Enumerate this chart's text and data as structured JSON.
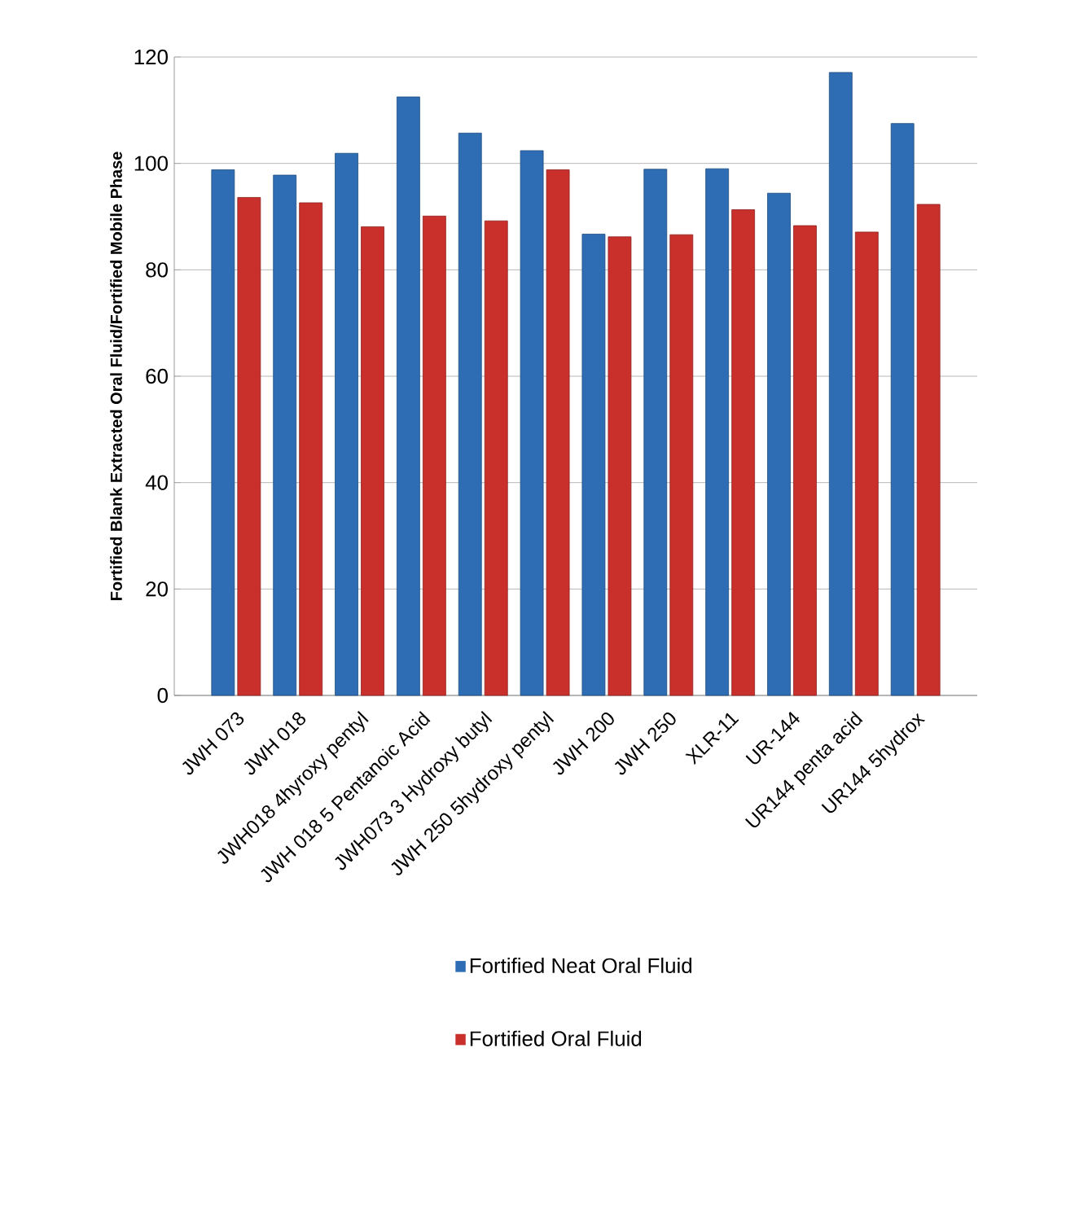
{
  "chart_data": {
    "type": "bar",
    "ylabel": "Fortified Blank Extracted Oral Fluid/Fortified Mobile Phase",
    "categories": [
      "JWH 073",
      "JWH 018",
      "JWH018 4hyroxy pentyl",
      "JWH 018 5 Pentanoic Acid",
      "JWH073 3 Hydroxy butyl",
      "JWH 250 5hydroxy pentyl",
      "JWH 200",
      "JWH 250",
      "XLR-11",
      "UR-144",
      "UR144 penta acid",
      "UR144 5hydrox"
    ],
    "series": [
      {
        "name": "Fortified Neat Oral Fluid",
        "color": "#2e6db4",
        "values": [
          98.8,
          97.8,
          101.9,
          112.5,
          105.7,
          102.4,
          86.7,
          98.9,
          99.0,
          94.4,
          117.1,
          107.5
        ]
      },
      {
        "name": "Fortified Oral Fluid",
        "color": "#c9302c",
        "values": [
          93.6,
          92.6,
          88.1,
          90.1,
          89.2,
          98.8,
          86.2,
          86.6,
          91.3,
          88.3,
          87.1,
          92.3
        ]
      }
    ],
    "ylim": [
      0,
      120
    ],
    "yticks": [
      0,
      20,
      40,
      60,
      80,
      100,
      120
    ],
    "grid": "y",
    "legend": "bottom"
  }
}
